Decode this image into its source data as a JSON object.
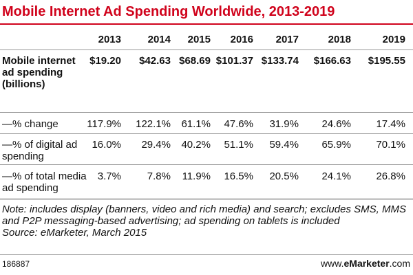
{
  "header": {
    "title": "Mobile Internet Ad Spending Worldwide, 2013-2019"
  },
  "table": {
    "columns": [
      "2013",
      "2014",
      "2015",
      "2016",
      "2017",
      "2018",
      "2019"
    ],
    "rows": [
      {
        "label": "Mobile internet ad spending (billions)",
        "cells": [
          "$19.20",
          "$42.63",
          "$68.69",
          "$101.37",
          "$133.74",
          "$166.63",
          "$195.55"
        ]
      },
      {
        "label": "—% change",
        "cells": [
          "117.9%",
          "122.1%",
          "61.1%",
          "47.6%",
          "31.9%",
          "24.6%",
          "17.4%"
        ]
      },
      {
        "label": "—% of digital ad spending",
        "cells": [
          "16.0%",
          "29.4%",
          "40.2%",
          "51.1%",
          "59.4%",
          "65.9%",
          "70.1%"
        ]
      },
      {
        "label": "—% of total media ad spending",
        "cells": [
          "3.7%",
          "7.8%",
          "11.9%",
          "16.5%",
          "20.5%",
          "24.1%",
          "26.8%"
        ]
      }
    ]
  },
  "notes": {
    "note": "Note: includes display (banners, video and rich media) and search; excludes SMS, MMS and P2P messaging-based advertising; ad spending on tablets is included",
    "source": "Source: eMarketer, March 2015"
  },
  "footer": {
    "id": "186887",
    "site_prefix": "www.",
    "site_brand": "eMarketer",
    "site_suffix": ".com"
  }
}
